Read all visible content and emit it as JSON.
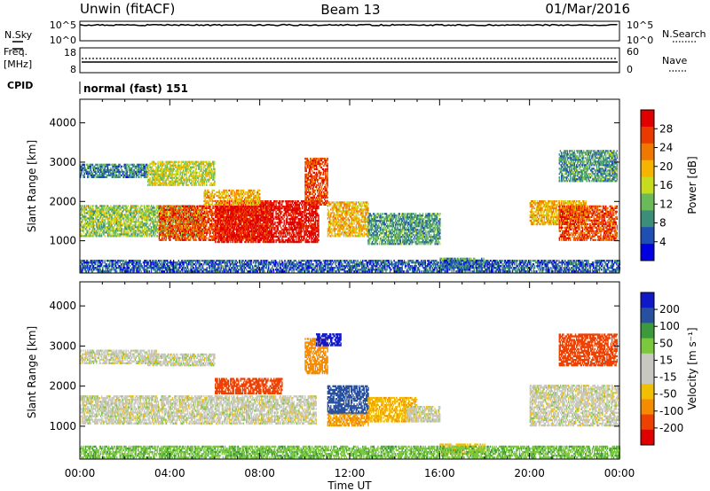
{
  "header": {
    "radar": "Unwin (fitACF)",
    "beam": "Beam 13",
    "date": "01/Mar/2016"
  },
  "status_panels": {
    "nsky_label": "N.Sky",
    "nsky_ticks": [
      "10^5",
      "10^0"
    ],
    "nsearch_label": "N.Search",
    "nsearch_ticks": [
      "10^5",
      "10^0"
    ],
    "freq_label_line1": "Freq.",
    "freq_label_line2": "[MHz]",
    "freq_ticks": [
      "18",
      "8"
    ],
    "nave_label": "Nave",
    "nave_ticks": [
      "60",
      "0"
    ],
    "cpid_label": "CPID",
    "cpid_value": "normal (fast) 151"
  },
  "colors": {
    "power_scale": [
      "#0000e0",
      "#1f4fb4",
      "#3b8f7a",
      "#6aba5a",
      "#c8dc1e",
      "#f4b400",
      "#f07800",
      "#ea3a00",
      "#e00000"
    ],
    "velocity_scale": [
      "#e00000",
      "#ee4000",
      "#f58c00",
      "#f2be00",
      "#c8c8c0",
      "#c8c8c0",
      "#7cc83c",
      "#3c9a3c",
      "#2850a0",
      "#1018c8"
    ],
    "ground_scatter": "#c0c0b8"
  },
  "chart_data": [
    {
      "type": "heatmap",
      "name": "power",
      "ylabel": "Slant Range [km]",
      "ylim": [
        180,
        4600
      ],
      "xlim": [
        0,
        24
      ],
      "yticks": [
        "1000",
        "2000",
        "3000",
        "4000"
      ],
      "colorbar_label": "Power [dB]",
      "colorbar_ticks": [
        "4",
        "8",
        "12",
        "16",
        "20",
        "24",
        "28"
      ],
      "colorbar_range": [
        0,
        32
      ],
      "regions": [
        {
          "t": [
            0.0,
            5.5
          ],
          "r": [
            1100,
            1900
          ],
          "v": 14
        },
        {
          "t": [
            3.5,
            8.5
          ],
          "r": [
            1000,
            1900
          ],
          "v": 26
        },
        {
          "t": [
            6.0,
            10.6
          ],
          "r": [
            950,
            2000
          ],
          "v": 30
        },
        {
          "t": [
            5.5,
            8.0
          ],
          "r": [
            1900,
            2300
          ],
          "v": 20
        },
        {
          "t": [
            10.0,
            11.0
          ],
          "r": [
            1900,
            3100
          ],
          "v": 26
        },
        {
          "t": [
            11.0,
            12.8
          ],
          "r": [
            1100,
            2000
          ],
          "v": 20
        },
        {
          "t": [
            12.8,
            16.0
          ],
          "r": [
            900,
            1700
          ],
          "v": 10
        },
        {
          "t": [
            0.0,
            3.0
          ],
          "r": [
            2600,
            2950
          ],
          "v": 8
        },
        {
          "t": [
            3.0,
            6.0
          ],
          "r": [
            2400,
            3000
          ],
          "v": 16
        },
        {
          "t": [
            16.0,
            18.0
          ],
          "r": [
            300,
            550
          ],
          "v": 10
        },
        {
          "t": [
            20.0,
            22.5
          ],
          "r": [
            1400,
            2000
          ],
          "v": 20
        },
        {
          "t": [
            21.3,
            23.9
          ],
          "r": [
            1000,
            1900
          ],
          "v": 26
        },
        {
          "t": [
            21.3,
            23.9
          ],
          "r": [
            2500,
            3300
          ],
          "v": 10
        },
        {
          "t": [
            0.0,
            24.0
          ],
          "r": [
            200,
            500
          ],
          "v": 6
        }
      ]
    },
    {
      "type": "heatmap",
      "name": "velocity",
      "ylabel": "Slant Range [km]",
      "xlabel": "Time UT",
      "ylim": [
        180,
        4600
      ],
      "xlim": [
        0,
        24
      ],
      "yticks": [
        "1000",
        "2000",
        "3000",
        "4000"
      ],
      "xticks": [
        "00:00",
        "04:00",
        "08:00",
        "12:00",
        "16:00",
        "20:00",
        "00:00"
      ],
      "colorbar_label": "Velocity [m s⁻¹]",
      "colorbar_ticks": [
        "200",
        "100",
        "50",
        "15",
        "-15",
        "-50",
        "-100",
        "-200"
      ],
      "colorbar_range": [
        -250,
        250
      ],
      "regions": [
        {
          "t": [
            0.0,
            10.5
          ],
          "r": [
            1050,
            1750
          ],
          "v": 0
        },
        {
          "t": [
            0.0,
            3.5
          ],
          "r": [
            2550,
            2900
          ],
          "v": 0
        },
        {
          "t": [
            3.0,
            6.0
          ],
          "r": [
            2500,
            2800
          ],
          "v": 0
        },
        {
          "t": [
            6.0,
            9.0
          ],
          "r": [
            1800,
            2200
          ],
          "v": -180
        },
        {
          "t": [
            10.0,
            11.0
          ],
          "r": [
            2300,
            3200
          ],
          "v": -80
        },
        {
          "t": [
            10.5,
            11.6
          ],
          "r": [
            3000,
            3300
          ],
          "v": 220
        },
        {
          "t": [
            11.0,
            12.8
          ],
          "r": [
            1300,
            2000
          ],
          "v": 180
        },
        {
          "t": [
            11.0,
            12.8
          ],
          "r": [
            1000,
            1300
          ],
          "v": -60
        },
        {
          "t": [
            12.8,
            15.0
          ],
          "r": [
            1100,
            1700
          ],
          "v": -40
        },
        {
          "t": [
            14.5,
            16.0
          ],
          "r": [
            1100,
            1500
          ],
          "v": 0
        },
        {
          "t": [
            16.0,
            18.0
          ],
          "r": [
            300,
            550
          ],
          "v": -30
        },
        {
          "t": [
            20.0,
            24.0
          ],
          "r": [
            1000,
            2000
          ],
          "v": 0
        },
        {
          "t": [
            21.3,
            23.9
          ],
          "r": [
            2500,
            3300
          ],
          "v": -150
        },
        {
          "t": [
            0.0,
            24.0
          ],
          "r": [
            200,
            480
          ],
          "v": 40
        }
      ]
    }
  ]
}
